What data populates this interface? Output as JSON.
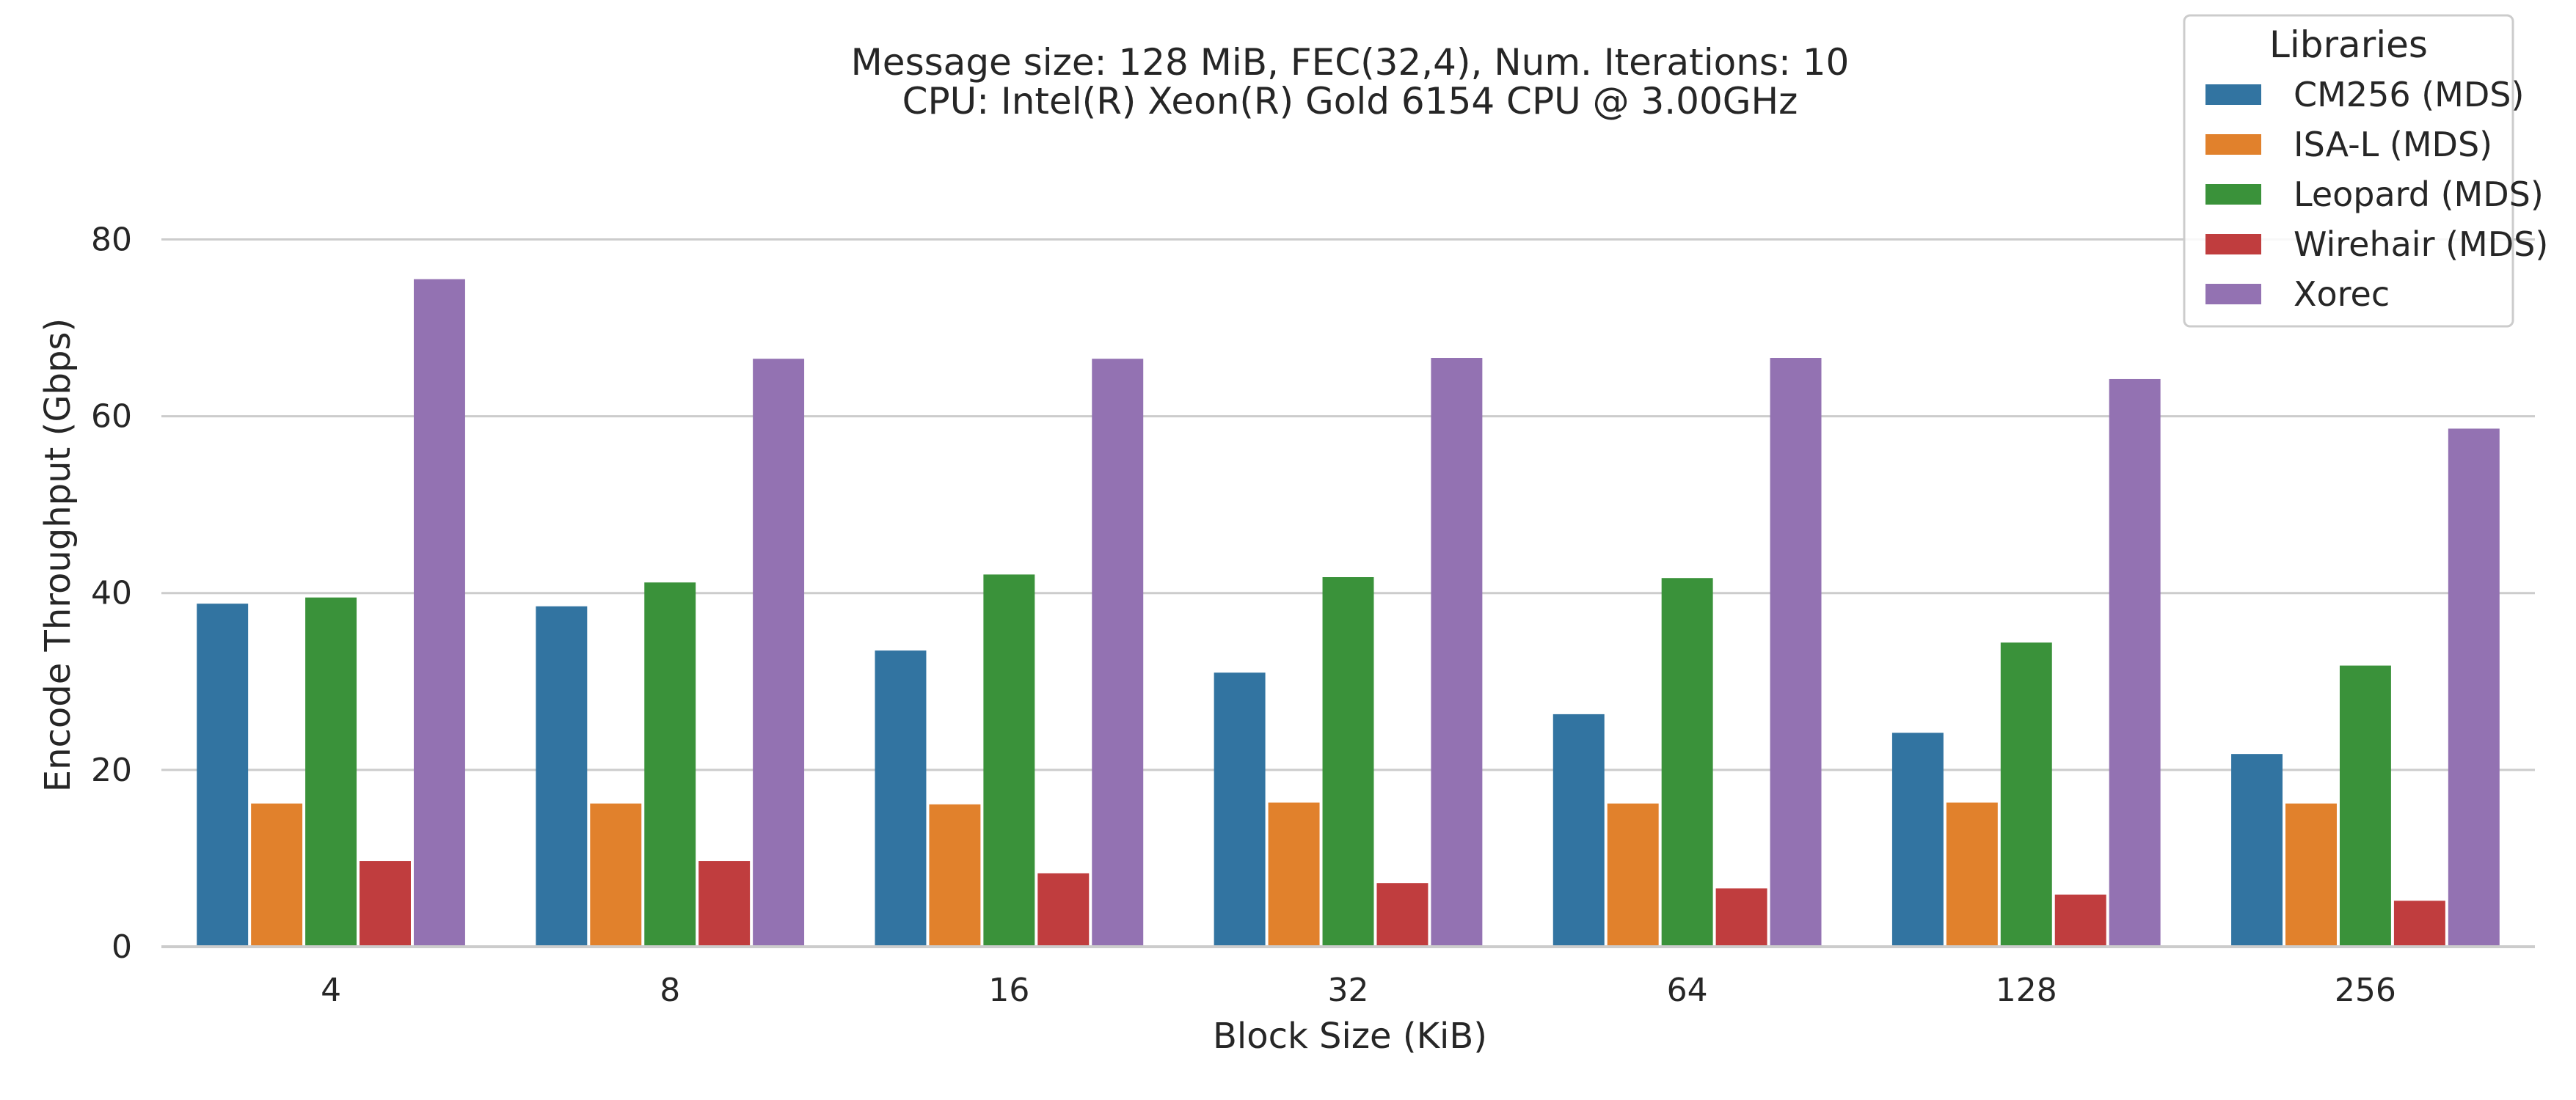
{
  "chart_data": {
    "type": "bar",
    "title_lines": [
      "Message size: 128 MiB, FEC(32,4), Num. Iterations: 10",
      "CPU: Intel(R) Xeon(R) Gold 6154 CPU @ 3.00GHz"
    ],
    "xlabel": "Block Size (KiB)",
    "ylabel": "Encode Throughput (Gbps)",
    "ylim": [
      0,
      88
    ],
    "yticks": [
      0,
      20,
      40,
      60,
      80
    ],
    "grid": "horizontal",
    "categories": [
      "4",
      "8",
      "16",
      "32",
      "64",
      "128",
      "256"
    ],
    "legend": {
      "title": "Libraries",
      "placement": "top-right"
    },
    "series": [
      {
        "name": "CM256 (MDS)",
        "color": "#3274a1",
        "values": [
          38.8,
          38.5,
          33.5,
          31.0,
          26.3,
          24.2,
          21.8
        ]
      },
      {
        "name": "ISA-L (MDS)",
        "color": "#e1812c",
        "values": [
          16.2,
          16.2,
          16.1,
          16.3,
          16.2,
          16.3,
          16.2
        ]
      },
      {
        "name": "Leopard (MDS)",
        "color": "#3a923a",
        "values": [
          39.5,
          41.2,
          42.1,
          41.8,
          41.7,
          34.4,
          31.8
        ]
      },
      {
        "name": "Wirehair (MDS)",
        "color": "#c03d3e",
        "values": [
          9.7,
          9.7,
          8.3,
          7.2,
          6.6,
          5.9,
          5.2
        ]
      },
      {
        "name": "Xorec",
        "color": "#9372b2",
        "values": [
          75.5,
          66.5,
          66.5,
          66.6,
          66.6,
          64.2,
          58.6
        ]
      }
    ]
  }
}
